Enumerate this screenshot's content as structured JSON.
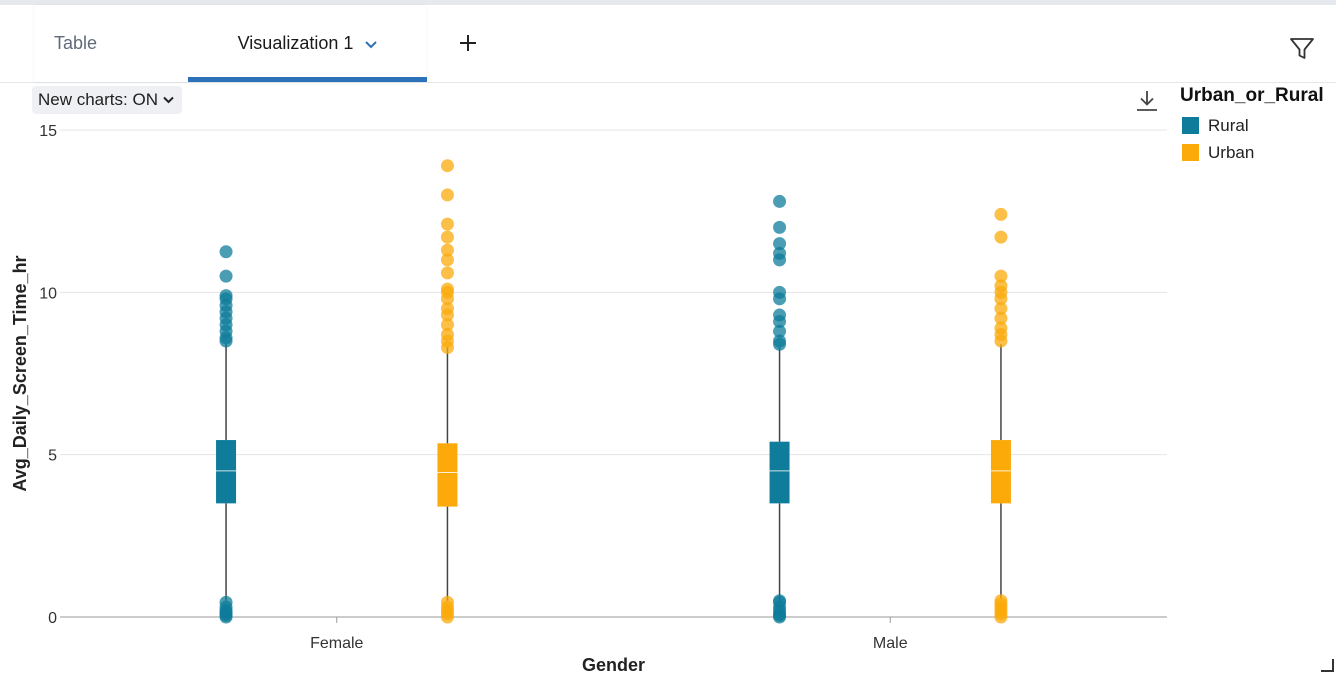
{
  "tabs": {
    "table_label": "Table",
    "visualization_label": "Visualization 1"
  },
  "toolbar": {
    "new_charts_label": "New charts: ON"
  },
  "icons": {
    "add_tab": "plus-icon",
    "filter": "filter-funnel-icon",
    "download": "download-icon",
    "dropdown": "chevron-down-icon",
    "resize": "resize-grip-icon"
  },
  "colors": {
    "accent": "#2d72b8",
    "rural": "#0e7c9a",
    "urban": "#fbaa0a"
  },
  "chart_data": {
    "type": "box",
    "xlabel": "Gender",
    "ylabel": "Avg_Daily_Screen_Time_hr",
    "ylim": [
      0,
      15
    ],
    "yticks": [
      0,
      5,
      10,
      15
    ],
    "grid": true,
    "legend": {
      "title": "Urban_or_Rural",
      "placement": "right"
    },
    "categories": [
      "Female",
      "Male"
    ],
    "series": [
      {
        "name": "Rural",
        "color": "#0e7c9a",
        "boxes": [
          {
            "category": "Female",
            "min": 0.5,
            "q1": 3.5,
            "median": 4.5,
            "q3": 5.45,
            "max": 8.4,
            "outliers": [
              0.0,
              0.05,
              0.1,
              0.15,
              0.2,
              0.3,
              0.45,
              8.5,
              8.6,
              8.8,
              9.0,
              9.2,
              9.4,
              9.6,
              9.8,
              9.9,
              10.5,
              11.25
            ]
          },
          {
            "category": "Male",
            "min": 0.5,
            "q1": 3.5,
            "median": 4.5,
            "q3": 5.4,
            "max": 8.3,
            "outliers": [
              0.0,
              0.05,
              0.1,
              0.2,
              0.3,
              0.45,
              0.5,
              8.4,
              8.5,
              8.8,
              9.1,
              9.3,
              9.8,
              10.0,
              11.0,
              11.2,
              11.5,
              12.0,
              12.8
            ]
          }
        ]
      },
      {
        "name": "Urban",
        "color": "#fbaa0a",
        "boxes": [
          {
            "category": "Female",
            "min": 0.5,
            "q1": 3.4,
            "median": 4.45,
            "q3": 5.35,
            "max": 8.3,
            "outliers": [
              0.0,
              0.1,
              0.2,
              0.3,
              0.45,
              8.3,
              8.5,
              8.7,
              9.0,
              9.3,
              9.5,
              9.8,
              10.0,
              10.1,
              10.6,
              11.0,
              11.3,
              11.7,
              12.1,
              13.0,
              13.9
            ]
          },
          {
            "category": "Male",
            "min": 0.55,
            "q1": 3.5,
            "median": 4.5,
            "q3": 5.45,
            "max": 8.4,
            "outliers": [
              0.0,
              0.1,
              0.2,
              0.3,
              0.4,
              0.5,
              8.5,
              8.7,
              8.9,
              9.2,
              9.5,
              9.8,
              10.0,
              10.2,
              10.5,
              11.7,
              12.4
            ]
          }
        ]
      }
    ]
  }
}
